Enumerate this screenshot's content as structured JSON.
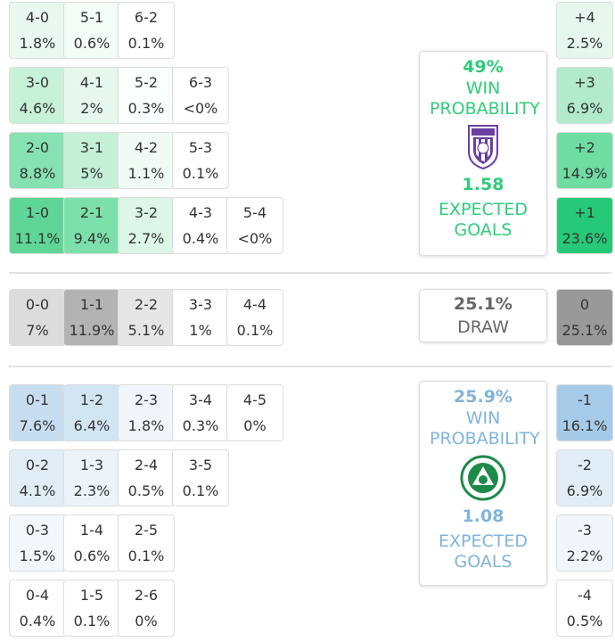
{
  "colors": {
    "home_accent": "#2ecc7a",
    "away_accent": "#7fb4db",
    "draw_text": "#666666"
  },
  "home_scores": [
    {
      "score": "4-0",
      "pct": "1.8%",
      "bg": "#e9f9f0"
    },
    {
      "score": "5-1",
      "pct": "0.6%",
      "bg": "#f3fcf7"
    },
    {
      "score": "6-2",
      "pct": "0.1%",
      "bg": "#ffffff"
    },
    {
      "score": "3-0",
      "pct": "4.6%",
      "bg": "#c8f1da"
    },
    {
      "score": "4-1",
      "pct": "2%",
      "bg": "#e6f8ee"
    },
    {
      "score": "5-2",
      "pct": "0.3%",
      "bg": "#fafefc"
    },
    {
      "score": "6-3",
      "pct": "<0%",
      "bg": "#ffffff"
    },
    {
      "score": "2-0",
      "pct": "8.8%",
      "bg": "#86e2b2"
    },
    {
      "score": "3-1",
      "pct": "5%",
      "bg": "#c4f0d8"
    },
    {
      "score": "4-2",
      "pct": "1.1%",
      "bg": "#f0fbf5"
    },
    {
      "score": "5-3",
      "pct": "0.1%",
      "bg": "#ffffff"
    },
    {
      "score": "1-0",
      "pct": "11.1%",
      "bg": "#5fd697"
    },
    {
      "score": "2-1",
      "pct": "9.4%",
      "bg": "#7ce0ab"
    },
    {
      "score": "3-2",
      "pct": "2.7%",
      "bg": "#dcf6e8"
    },
    {
      "score": "4-3",
      "pct": "0.4%",
      "bg": "#ffffff"
    },
    {
      "score": "5-4",
      "pct": "<0%",
      "bg": "#ffffff"
    }
  ],
  "draw_scores": [
    {
      "score": "0-0",
      "pct": "7%",
      "bg": "#dcdcdc"
    },
    {
      "score": "1-1",
      "pct": "11.9%",
      "bg": "#b3b3b3"
    },
    {
      "score": "2-2",
      "pct": "5.1%",
      "bg": "#e6e6e6"
    },
    {
      "score": "3-3",
      "pct": "1%",
      "bg": "#ffffff"
    },
    {
      "score": "4-4",
      "pct": "0.1%",
      "bg": "#ffffff"
    }
  ],
  "away_scores": [
    {
      "score": "0-1",
      "pct": "7.6%",
      "bg": "#c7def0"
    },
    {
      "score": "1-2",
      "pct": "6.4%",
      "bg": "#d2e5f3"
    },
    {
      "score": "2-3",
      "pct": "1.8%",
      "bg": "#f0f6fb"
    },
    {
      "score": "3-4",
      "pct": "0.3%",
      "bg": "#ffffff"
    },
    {
      "score": "4-5",
      "pct": "0%",
      "bg": "#ffffff"
    },
    {
      "score": "0-2",
      "pct": "4.1%",
      "bg": "#e0edf7"
    },
    {
      "score": "1-3",
      "pct": "2.3%",
      "bg": "#ecf4fa"
    },
    {
      "score": "2-4",
      "pct": "0.5%",
      "bg": "#ffffff"
    },
    {
      "score": "3-5",
      "pct": "0.1%",
      "bg": "#ffffff"
    },
    {
      "score": "0-3",
      "pct": "1.5%",
      "bg": "#f2f7fb"
    },
    {
      "score": "1-4",
      "pct": "0.6%",
      "bg": "#ffffff"
    },
    {
      "score": "2-5",
      "pct": "0.1%",
      "bg": "#ffffff"
    },
    {
      "score": "0-4",
      "pct": "0.4%",
      "bg": "#ffffff"
    },
    {
      "score": "1-5",
      "pct": "0.1%",
      "bg": "#ffffff"
    },
    {
      "score": "2-6",
      "pct": "0%",
      "bg": "#ffffff"
    }
  ],
  "margins": [
    {
      "label": "+4",
      "pct": "2.5%",
      "bg": "#e6f8ee"
    },
    {
      "label": "+3",
      "pct": "6.9%",
      "bg": "#b1ebcb"
    },
    {
      "label": "+2",
      "pct": "14.9%",
      "bg": "#6fdca2"
    },
    {
      "label": "+1",
      "pct": "23.6%",
      "bg": "#25c977"
    },
    {
      "label": "0",
      "pct": "25.1%",
      "bg": "#999999"
    },
    {
      "label": "-1",
      "pct": "16.1%",
      "bg": "#a6cbe8"
    },
    {
      "label": "-2",
      "pct": "6.9%",
      "bg": "#e0edf7"
    },
    {
      "label": "-3",
      "pct": "2.2%",
      "bg": "#f0f6fb"
    },
    {
      "label": "-4",
      "pct": "0.5%",
      "bg": "#ffffff"
    }
  ],
  "home_card": {
    "win_pct": "49%",
    "win_label": "WIN PROBABILITY",
    "xg": "1.58",
    "xg_label": "EXPECTED GOALS"
  },
  "draw_card": {
    "pct": "25.1%",
    "label": "DRAW"
  },
  "away_card": {
    "win_pct": "25.9%",
    "win_label": "WIN PROBABILITY",
    "xg": "1.08",
    "xg_label": "EXPECTED GOALS"
  }
}
